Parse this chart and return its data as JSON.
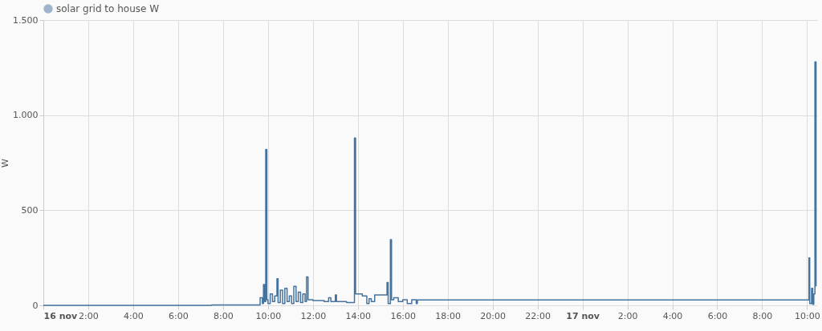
{
  "chart_data": {
    "type": "step",
    "ylabel": "W",
    "legend": "top",
    "grid": true,
    "xlim": [
      "--11-16T00:00",
      "--11-17T10:27"
    ],
    "xticks": [
      {
        "value": "--11-16T00:00",
        "label": "16 nov"
      },
      {
        "value": "--11-16T02:00",
        "label": "2:00"
      },
      {
        "value": "--11-16T04:00",
        "label": "4:00"
      },
      {
        "value": "--11-16T06:00",
        "label": "6:00"
      },
      {
        "value": "--11-16T08:00",
        "label": "8:00"
      },
      {
        "value": "--11-16T10:00",
        "label": "10:00"
      },
      {
        "value": "--11-16T12:00",
        "label": "12:00"
      },
      {
        "value": "--11-16T14:00",
        "label": "14:00"
      },
      {
        "value": "--11-16T16:00",
        "label": "16:00"
      },
      {
        "value": "--11-16T18:00",
        "label": "18:00"
      },
      {
        "value": "--11-16T20:00",
        "label": "20:00"
      },
      {
        "value": "--11-16T22:00",
        "label": "22:00"
      },
      {
        "value": "--11-17T00:00",
        "label": "17 nov"
      },
      {
        "value": "--11-17T02:00",
        "label": "2:00"
      },
      {
        "value": "--11-17T04:00",
        "label": "4:00"
      },
      {
        "value": "--11-17T06:00",
        "label": "6:00"
      },
      {
        "value": "--11-17T08:00",
        "label": "8:00"
      },
      {
        "value": "--11-17T10:00",
        "label": "10:00"
      }
    ],
    "ylim": [
      0,
      1500
    ],
    "yticks": [
      0,
      500,
      {
        "value": 1000,
        "label": "1.000"
      },
      {
        "value": 1500,
        "label": "1.500"
      }
    ],
    "series": [
      {
        "name": "solar grid to house W",
        "color": "#44739e",
        "x": [
          "--11-16T00:00",
          "--11-16T07:30",
          "--11-16T09:39",
          "--11-16T09:45",
          "--11-16T09:48",
          "--11-16T09:51",
          "--11-16T09:54",
          "--11-16T09:57",
          "--11-16T10:00",
          "--11-16T10:06",
          "--11-16T10:12",
          "--11-16T10:18",
          "--11-16T10:24",
          "--11-16T10:27",
          "--11-16T10:33",
          "--11-16T10:39",
          "--11-16T10:45",
          "--11-16T10:51",
          "--11-16T10:57",
          "--11-16T11:03",
          "--11-16T11:09",
          "--11-16T11:15",
          "--11-16T11:21",
          "--11-16T11:27",
          "--11-16T11:33",
          "--11-16T11:39",
          "--11-16T11:43",
          "--11-16T11:47",
          "--11-16T12:00",
          "--11-16T12:30",
          "--11-16T12:42",
          "--11-16T12:48",
          "--11-16T13:00",
          "--11-16T13:03",
          "--11-16T13:30",
          "--11-16T13:51",
          "--11-16T13:54",
          "--11-16T14:12",
          "--11-16T14:24",
          "--11-16T14:30",
          "--11-16T14:36",
          "--11-16T14:45",
          "--11-16T15:18",
          "--11-16T15:21",
          "--11-16T15:27",
          "--11-16T15:30",
          "--11-16T15:36",
          "--11-16T15:48",
          "--11-16T16:00",
          "--11-16T16:12",
          "--11-16T16:24",
          "--11-16T16:36",
          "--11-16T16:39",
          "--11-17T10:03",
          "--11-17T10:05",
          "--11-17T10:07",
          "--11-17T10:12",
          "--11-17T10:15",
          "--11-17T10:18",
          "--11-17T10:21",
          "--11-17T10:24"
        ],
        "values": [
          0,
          2,
          40,
          10,
          110,
          20,
          820,
          30,
          10,
          60,
          20,
          50,
          140,
          15,
          80,
          10,
          90,
          20,
          50,
          10,
          100,
          20,
          70,
          15,
          60,
          20,
          150,
          30,
          25,
          20,
          40,
          20,
          55,
          20,
          15,
          880,
          60,
          50,
          10,
          35,
          20,
          55,
          120,
          10,
          345,
          30,
          40,
          20,
          30,
          10,
          30,
          10,
          28,
          28,
          250,
          10,
          90,
          5,
          60,
          1280,
          100
        ]
      }
    ]
  }
}
